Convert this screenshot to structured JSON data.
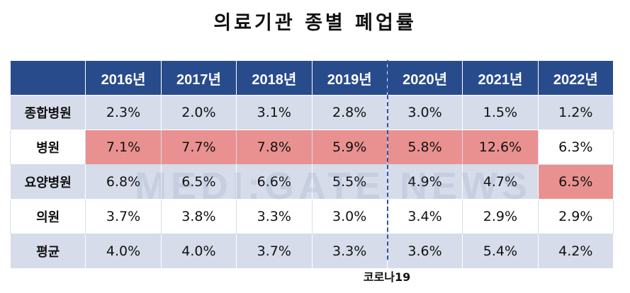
{
  "chart_data": {
    "type": "table",
    "title": "의료기관 종별 폐업률",
    "columns": [
      "2016년",
      "2017년",
      "2018년",
      "2019년",
      "2020년",
      "2021년",
      "2022년"
    ],
    "rows": [
      {
        "label": "종합병원",
        "values": [
          "2.3%",
          "2.0%",
          "3.1%",
          "2.8%",
          "3.0%",
          "1.5%",
          "1.2%"
        ]
      },
      {
        "label": "병원",
        "values": [
          "7.1%",
          "7.7%",
          "7.8%",
          "5.9%",
          "5.8%",
          "12.6%",
          "6.3%"
        ]
      },
      {
        "label": "요양병원",
        "values": [
          "6.8%",
          "6.5%",
          "6.6%",
          "5.5%",
          "4.9%",
          "4.7%",
          "6.5%"
        ]
      },
      {
        "label": "의원",
        "values": [
          "3.7%",
          "3.8%",
          "3.3%",
          "3.0%",
          "3.4%",
          "2.9%",
          "2.9%"
        ]
      },
      {
        "label": "평균",
        "values": [
          "4.0%",
          "4.0%",
          "3.7%",
          "3.3%",
          "3.6%",
          "5.4%",
          "4.2%"
        ]
      }
    ],
    "highlight_color": "#e99190",
    "highlighted_cells": [
      [
        1,
        0
      ],
      [
        1,
        1
      ],
      [
        1,
        2
      ],
      [
        1,
        3
      ],
      [
        1,
        4
      ],
      [
        1,
        5
      ],
      [
        2,
        6
      ]
    ],
    "annotation": "코로나19",
    "watermark": "MEDI:GATE NEWS"
  },
  "colors": {
    "header": "#284b8c",
    "row_shade": "#d6dcea",
    "divider": "#2a56a8"
  }
}
